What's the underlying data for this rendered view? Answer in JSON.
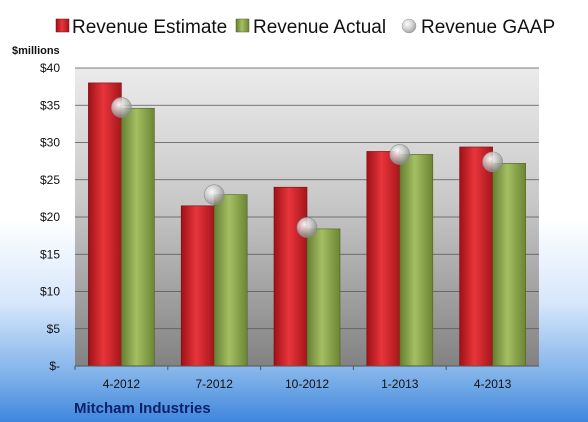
{
  "chart_data": {
    "type": "bar",
    "categories": [
      "4-2012",
      "7-2012",
      "10-2012",
      "1-2013",
      "4-2013"
    ],
    "series": [
      {
        "name": "Revenue Estimate",
        "values": [
          38.0,
          21.5,
          24.0,
          28.8,
          29.4
        ],
        "color": "#d11f25"
      },
      {
        "name": "Revenue Actual",
        "values": [
          34.6,
          23.0,
          18.4,
          28.4,
          27.2
        ],
        "color": "#8aa64a"
      }
    ],
    "markers": {
      "name": "Revenue GAAP",
      "values": [
        34.7,
        23.0,
        18.6,
        28.4,
        27.4
      ],
      "color": "#c0c0c0"
    },
    "ylabel": "$millions",
    "ylim": [
      0,
      40
    ],
    "yticks": [
      {
        "value": 0,
        "label": "$-"
      },
      {
        "value": 5,
        "label": "$5"
      },
      {
        "value": 10,
        "label": "$10"
      },
      {
        "value": 15,
        "label": "$15"
      },
      {
        "value": 20,
        "label": "$20"
      },
      {
        "value": 25,
        "label": "$25"
      },
      {
        "value": 30,
        "label": "$30"
      },
      {
        "value": 35,
        "label": "$35"
      },
      {
        "value": 40,
        "label": "$40"
      }
    ],
    "legend_position": "top",
    "grid": true
  },
  "company": "Mitcham Industries"
}
